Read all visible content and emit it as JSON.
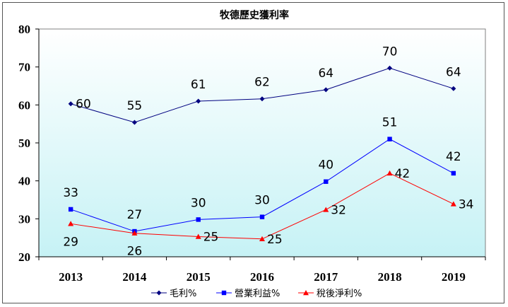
{
  "chart_data": {
    "type": "line",
    "title": "牧德歷史獲利率",
    "categories": [
      "2013",
      "2014",
      "2015",
      "2016",
      "2017",
      "2018",
      "2019"
    ],
    "ylim": [
      20,
      80
    ],
    "yticks": [
      "20",
      "30",
      "40",
      "50",
      "60",
      "70",
      "80"
    ],
    "grid": false,
    "legend_position": "bottom",
    "series": [
      {
        "name": "毛利%",
        "values": [
          60.3,
          55.4,
          61.0,
          61.6,
          64.0,
          69.7,
          64.3
        ],
        "labels": [
          "60",
          "55",
          "61",
          "62",
          "64",
          "70",
          "64"
        ],
        "color": "#000080",
        "marker": "diamond",
        "label_position": [
          "right",
          "above",
          "above",
          "above",
          "above",
          "above",
          "above"
        ]
      },
      {
        "name": "營業利益%",
        "values": [
          32.5,
          26.7,
          29.8,
          30.5,
          39.8,
          51.0,
          42.0
        ],
        "labels": [
          "33",
          "27",
          "30",
          "30",
          "40",
          "51",
          "42"
        ],
        "color": "#0000ff",
        "marker": "square",
        "label_position": [
          "above",
          "above",
          "above",
          "above",
          "above",
          "above",
          "above"
        ]
      },
      {
        "name": "稅後淨利%",
        "values": [
          28.7,
          26.2,
          25.3,
          24.7,
          32.4,
          42.0,
          33.9
        ],
        "labels": [
          "29",
          "26",
          "25",
          "25",
          "32",
          "42",
          "34"
        ],
        "color": "#ff0000",
        "marker": "triangle",
        "label_position": [
          "below",
          "below",
          "right",
          "right",
          "right",
          "right",
          "right"
        ]
      }
    ]
  }
}
